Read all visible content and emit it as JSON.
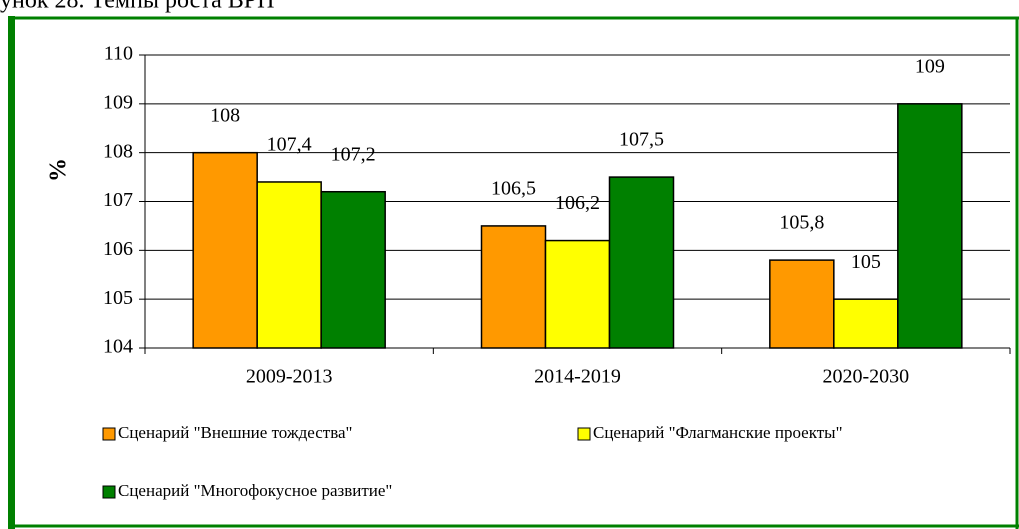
{
  "chart_data": {
    "type": "bar",
    "title": "унок 28. Темпы роста ВРП",
    "ylabel": "%",
    "categories": [
      "2009-2013",
      "2014-2019",
      "2020-2030"
    ],
    "series": [
      {
        "name": "Сценарий \"Внешние тождества\"",
        "color": "#ff9900",
        "values": [
          108,
          106.5,
          105.8
        ],
        "value_labels": [
          "108",
          "106,5",
          "105,8"
        ]
      },
      {
        "name": "Сценарий \"Флагманские проекты\"",
        "color": "#ffff00",
        "values": [
          107.4,
          106.2,
          105
        ],
        "value_labels": [
          "107,4",
          "106,2",
          "105"
        ]
      },
      {
        "name": "Сценарий \"Многофокусное развитие\"",
        "color": "#008000",
        "values": [
          107.2,
          107.5,
          109
        ],
        "value_labels": [
          "107,2",
          "107,5",
          "109"
        ]
      }
    ],
    "ylim": [
      104,
      110
    ],
    "yticks": [
      104,
      105,
      106,
      107,
      108,
      109,
      110
    ],
    "grid": true
  }
}
